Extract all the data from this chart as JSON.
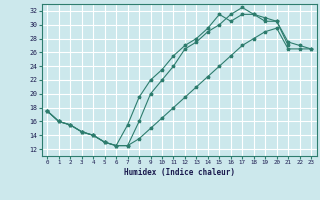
{
  "xlabel": "Humidex (Indice chaleur)",
  "xlim": [
    -0.5,
    23.5
  ],
  "ylim": [
    11,
    33
  ],
  "yticks": [
    12,
    14,
    16,
    18,
    20,
    22,
    24,
    26,
    28,
    30,
    32
  ],
  "xticks": [
    0,
    1,
    2,
    3,
    4,
    5,
    6,
    7,
    8,
    9,
    10,
    11,
    12,
    13,
    14,
    15,
    16,
    17,
    18,
    19,
    20,
    21,
    22,
    23
  ],
  "bg_color": "#cce8ec",
  "grid_color": "#ffffff",
  "line_color": "#2e7d6e",
  "line1_x": [
    0,
    1,
    2,
    3,
    4,
    5,
    6,
    7,
    8,
    9,
    10,
    11,
    12,
    13,
    14,
    15,
    16,
    17,
    18,
    19,
    20,
    21
  ],
  "line1_y": [
    17.5,
    16.0,
    15.5,
    14.5,
    14.0,
    13.0,
    12.5,
    12.5,
    16.0,
    20.0,
    22.0,
    24.0,
    26.5,
    27.5,
    29.0,
    30.0,
    31.5,
    32.5,
    31.5,
    30.5,
    30.5,
    27.0
  ],
  "line2_x": [
    0,
    1,
    2,
    3,
    4,
    5,
    6,
    7,
    8,
    9,
    10,
    11,
    12,
    13,
    14,
    15,
    16,
    17,
    18,
    19,
    20,
    21,
    22,
    23
  ],
  "line2_y": [
    17.5,
    16.0,
    15.5,
    14.5,
    14.0,
    13.0,
    12.5,
    15.5,
    19.5,
    22.0,
    23.5,
    25.5,
    27.0,
    28.0,
    29.5,
    31.5,
    30.5,
    31.5,
    31.5,
    31.0,
    30.5,
    27.5,
    27.0,
    26.5
  ],
  "line3_x": [
    0,
    1,
    2,
    3,
    4,
    5,
    6,
    7,
    8,
    9,
    10,
    11,
    12,
    13,
    14,
    15,
    16,
    17,
    18,
    19,
    20,
    21,
    22,
    23
  ],
  "line3_y": [
    17.5,
    16.0,
    15.5,
    14.5,
    14.0,
    13.0,
    12.5,
    12.5,
    13.5,
    15.0,
    16.5,
    18.0,
    19.5,
    21.0,
    22.5,
    24.0,
    25.5,
    27.0,
    28.0,
    29.0,
    29.5,
    26.5,
    26.5,
    26.5
  ]
}
